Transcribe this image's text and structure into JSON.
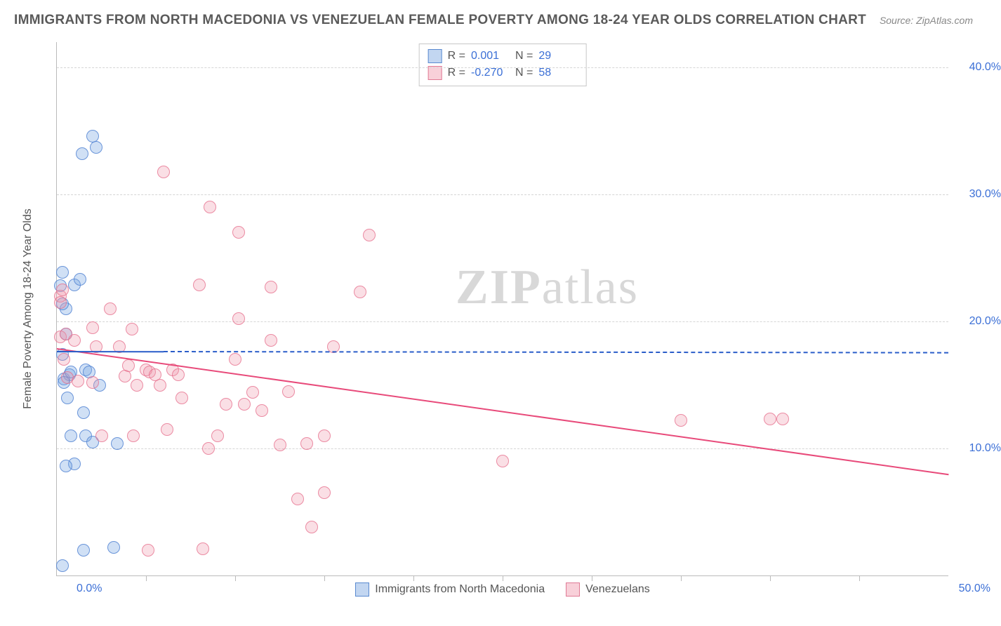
{
  "title": "IMMIGRANTS FROM NORTH MACEDONIA VS VENEZUELAN FEMALE POVERTY AMONG 18-24 YEAR OLDS CORRELATION CHART",
  "source": "Source: ZipAtlas.com",
  "watermark_a": "ZIP",
  "watermark_b": "atlas",
  "chart": {
    "type": "scatter",
    "y_label": "Female Poverty Among 18-24 Year Olds",
    "x_min": 0,
    "x_max": 50,
    "y_min": 0,
    "y_max": 42,
    "x_min_label": "0.0%",
    "x_max_label": "50.0%",
    "y_ticks": [
      10,
      20,
      30,
      40
    ],
    "y_tick_labels": [
      "10.0%",
      "20.0%",
      "30.0%",
      "40.0%"
    ],
    "x_tick_positions": [
      5,
      10,
      15,
      20,
      25,
      30,
      35,
      40,
      45
    ],
    "background_color": "#ffffff",
    "grid_color": "#d5d5d5",
    "axis_color": "#bbbbbb",
    "tick_label_color": "#3b6fd6",
    "marker_radius": 9,
    "series": {
      "blue": {
        "label": "Immigrants from North Macedonia",
        "fill": "rgba(120,165,225,0.35)",
        "stroke": "rgba(80,130,210,0.8)",
        "R": "0.001",
        "N": "29",
        "trend": {
          "y_at_x0": 17.7,
          "y_at_x50": 17.6,
          "dash_from_x": 6,
          "color": "#2a5dc9"
        },
        "points": [
          [
            0.3,
            17.4
          ],
          [
            0.4,
            15.5
          ],
          [
            0.3,
            23.9
          ],
          [
            0.5,
            21.0
          ],
          [
            0.7,
            15.8
          ],
          [
            0.8,
            16.0
          ],
          [
            1.0,
            22.9
          ],
          [
            1.4,
            33.2
          ],
          [
            1.6,
            16.2
          ],
          [
            1.8,
            16.0
          ],
          [
            2.0,
            34.6
          ],
          [
            2.2,
            33.7
          ],
          [
            2.4,
            15.0
          ],
          [
            1.3,
            23.3
          ],
          [
            1.0,
            8.8
          ],
          [
            0.5,
            8.6
          ],
          [
            0.3,
            0.8
          ],
          [
            1.5,
            12.8
          ],
          [
            1.6,
            11.0
          ],
          [
            2.0,
            10.5
          ],
          [
            0.8,
            11.0
          ],
          [
            1.5,
            2.0
          ],
          [
            3.2,
            2.2
          ],
          [
            3.4,
            10.4
          ],
          [
            0.4,
            15.2
          ],
          [
            0.3,
            21.4
          ],
          [
            0.5,
            19.0
          ],
          [
            0.2,
            22.8
          ],
          [
            0.6,
            14.0
          ]
        ]
      },
      "pink": {
        "label": "Venezuelans",
        "fill": "rgba(240,150,170,0.30)",
        "stroke": "rgba(230,110,140,0.75)",
        "R": "-0.270",
        "N": "58",
        "trend": {
          "y_at_x0": 17.9,
          "y_at_x50": 8.0,
          "color": "#e84a7a"
        },
        "points": [
          [
            0.2,
            22.0
          ],
          [
            0.2,
            21.5
          ],
          [
            0.3,
            22.5
          ],
          [
            0.2,
            18.8
          ],
          [
            0.4,
            17.0
          ],
          [
            0.5,
            19.0
          ],
          [
            0.6,
            15.6
          ],
          [
            1.0,
            18.5
          ],
          [
            1.2,
            15.3
          ],
          [
            2.0,
            19.5
          ],
          [
            2.2,
            18.0
          ],
          [
            2.5,
            11.0
          ],
          [
            3.0,
            21.0
          ],
          [
            3.5,
            18.0
          ],
          [
            3.8,
            15.7
          ],
          [
            4.0,
            16.5
          ],
          [
            4.2,
            19.4
          ],
          [
            4.3,
            11.0
          ],
          [
            5.0,
            16.2
          ],
          [
            5.2,
            16.0
          ],
          [
            5.1,
            2.0
          ],
          [
            5.5,
            15.8
          ],
          [
            6.0,
            31.8
          ],
          [
            6.2,
            11.5
          ],
          [
            6.5,
            16.2
          ],
          [
            8.0,
            22.9
          ],
          [
            8.2,
            2.1
          ],
          [
            8.5,
            10.0
          ],
          [
            8.6,
            29.0
          ],
          [
            9.0,
            11.0
          ],
          [
            9.5,
            13.5
          ],
          [
            10.0,
            17.0
          ],
          [
            10.2,
            20.2
          ],
          [
            10.2,
            27.0
          ],
          [
            10.5,
            13.5
          ],
          [
            11.0,
            14.4
          ],
          [
            12.0,
            18.5
          ],
          [
            12.0,
            22.7
          ],
          [
            12.5,
            10.3
          ],
          [
            13.0,
            14.5
          ],
          [
            13.5,
            6.0
          ],
          [
            14.0,
            10.4
          ],
          [
            14.3,
            3.8
          ],
          [
            15.0,
            6.5
          ],
          [
            15.0,
            11.0
          ],
          [
            15.5,
            18.0
          ],
          [
            17.0,
            22.3
          ],
          [
            17.5,
            26.8
          ],
          [
            25.0,
            9.0
          ],
          [
            35.0,
            12.2
          ],
          [
            40.0,
            12.3
          ],
          [
            40.7,
            12.3
          ],
          [
            4.5,
            15.0
          ],
          [
            2.0,
            15.2
          ],
          [
            6.8,
            15.8
          ],
          [
            5.8,
            15.0
          ],
          [
            7.0,
            14.0
          ],
          [
            11.5,
            13.0
          ]
        ]
      }
    }
  },
  "stats_box": {
    "rows": [
      {
        "swatch": "blue",
        "R": "0.001",
        "N": "29"
      },
      {
        "swatch": "pink",
        "R": "-0.270",
        "N": "58"
      }
    ],
    "R_label": "R =",
    "N_label": "N ="
  },
  "bottom_legend": [
    {
      "swatch": "blue",
      "label": "Immigrants from North Macedonia"
    },
    {
      "swatch": "pink",
      "label": "Venezuelans"
    }
  ]
}
